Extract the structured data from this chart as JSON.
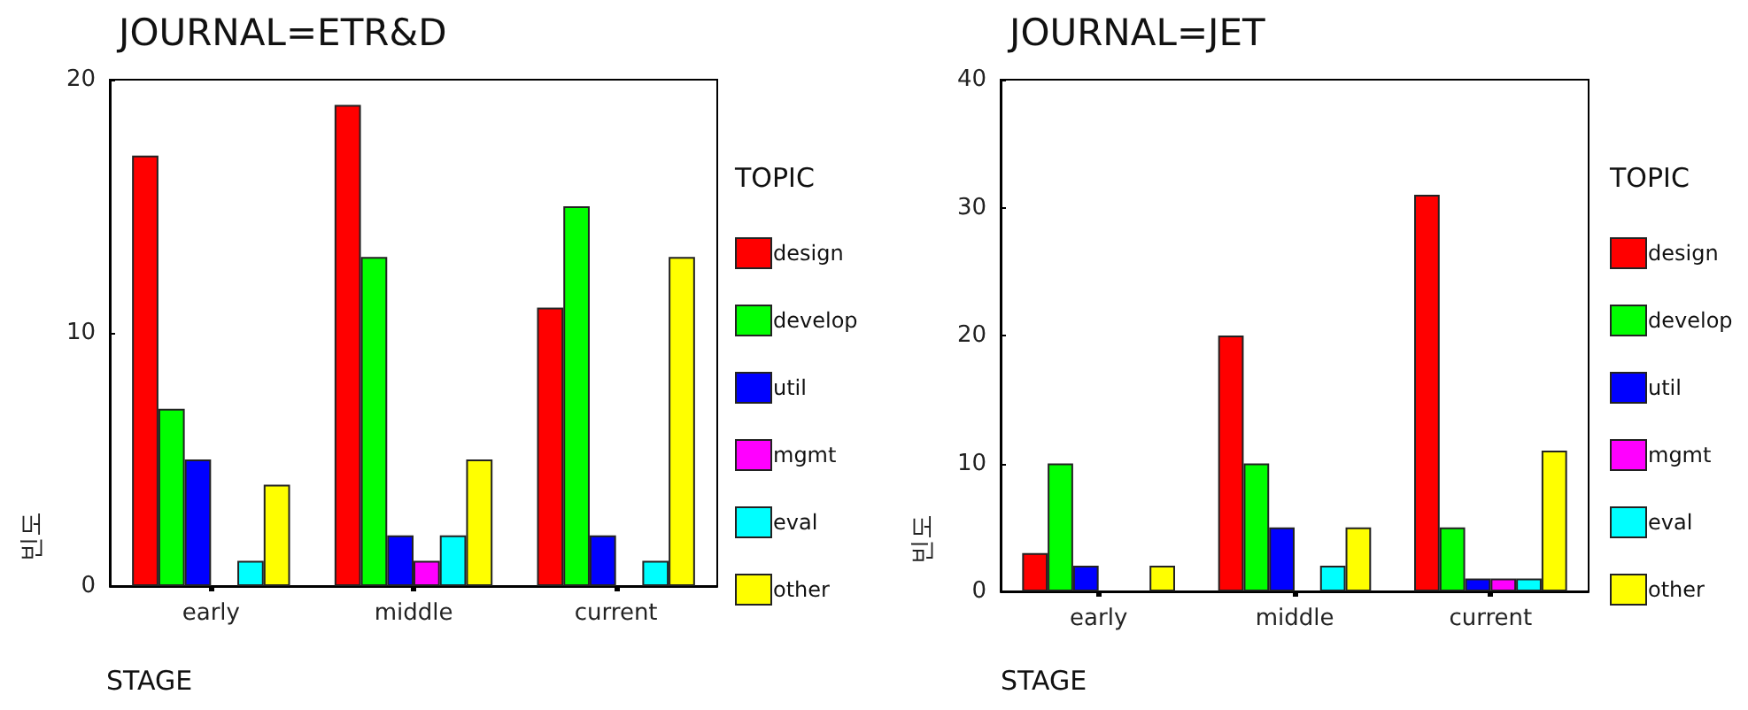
{
  "chart_data": [
    {
      "type": "bar",
      "title": "JOURNAL=ETR&D",
      "xlabel": "STAGE",
      "ylabel": "빈도",
      "legend_title": "TOPIC",
      "categories": [
        "early",
        "middle",
        "current"
      ],
      "series": [
        {
          "name": "design",
          "color": "#ff0000",
          "values": [
            17,
            19,
            11
          ]
        },
        {
          "name": "develop",
          "color": "#00ff00",
          "values": [
            7,
            13,
            15
          ]
        },
        {
          "name": "util",
          "color": "#0000ff",
          "values": [
            5,
            2,
            2
          ]
        },
        {
          "name": "mgmt",
          "color": "#ff00ff",
          "values": [
            null,
            1,
            null
          ]
        },
        {
          "name": "eval",
          "color": "#00ffff",
          "values": [
            1,
            2,
            1
          ]
        },
        {
          "name": "other",
          "color": "#ffff00",
          "values": [
            4,
            5,
            13
          ]
        }
      ],
      "ylim": [
        0,
        20
      ],
      "yticks": [
        0,
        10,
        20
      ],
      "grid": false,
      "legend": "right"
    },
    {
      "type": "bar",
      "title": "JOURNAL=JET",
      "xlabel": "STAGE",
      "ylabel": "빈도",
      "legend_title": "TOPIC",
      "categories": [
        "early",
        "middle",
        "current"
      ],
      "series": [
        {
          "name": "design",
          "color": "#ff0000",
          "values": [
            3,
            20,
            31
          ]
        },
        {
          "name": "develop",
          "color": "#00ff00",
          "values": [
            10,
            10,
            5
          ]
        },
        {
          "name": "util",
          "color": "#0000ff",
          "values": [
            2,
            5,
            1
          ]
        },
        {
          "name": "mgmt",
          "color": "#ff00ff",
          "values": [
            null,
            null,
            1
          ]
        },
        {
          "name": "eval",
          "color": "#00ffff",
          "values": [
            null,
            2,
            1
          ]
        },
        {
          "name": "other",
          "color": "#ffff00",
          "values": [
            2,
            5,
            11
          ]
        }
      ],
      "ylim": [
        0,
        40
      ],
      "yticks": [
        0,
        10,
        20,
        30,
        40
      ],
      "grid": false,
      "legend": "right"
    }
  ]
}
